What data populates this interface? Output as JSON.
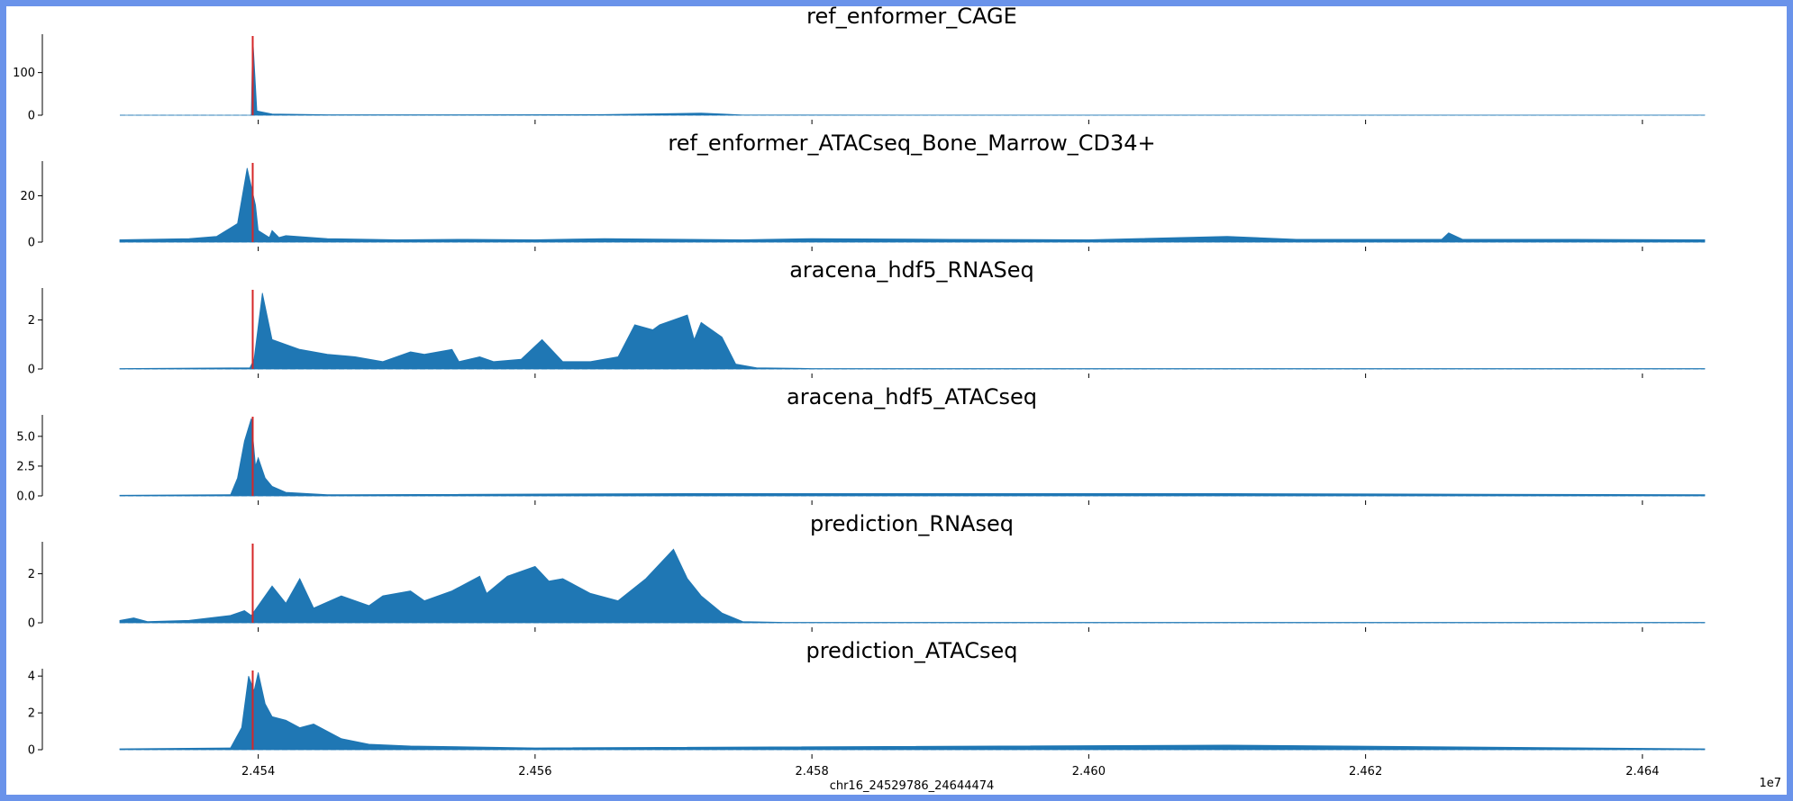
{
  "chart_data": {
    "type": "area",
    "xlabel": "chr16_24529786_24644474",
    "x_offset_label": "1e7",
    "xlim": [
      2.453,
      2.46445
    ],
    "x_ticks": [
      2.454,
      2.456,
      2.458,
      2.46,
      2.462,
      2.464
    ],
    "x_tick_labels": [
      "2.454",
      "2.456",
      "2.458",
      "2.460",
      "2.462",
      "2.464"
    ],
    "marker_x": 2.45396,
    "colors": {
      "fill": "#1f77b4",
      "marker": "#d62728",
      "frame": "#6a93ea"
    },
    "tracks": [
      {
        "title": "ref_enformer_CAGE",
        "ylim": [
          0,
          190
        ],
        "yticks": [
          0,
          100
        ],
        "ytick_labels": [
          "0",
          "100"
        ],
        "profile": [
          [
            2.453,
            0
          ],
          [
            2.45395,
            0
          ],
          [
            2.45396,
            185
          ],
          [
            2.45399,
            10
          ],
          [
            2.4541,
            3
          ],
          [
            2.4545,
            1
          ],
          [
            2.4555,
            1
          ],
          [
            2.4565,
            1.5
          ],
          [
            2.457,
            4
          ],
          [
            2.4572,
            5
          ],
          [
            2.45735,
            3
          ],
          [
            2.4575,
            0.5
          ],
          [
            2.46,
            0.3
          ],
          [
            2.46445,
            0.3
          ]
        ]
      },
      {
        "title": "ref_enformer_ATACseq_Bone_Marrow_CD34+",
        "ylim": [
          0,
          35
        ],
        "yticks": [
          0,
          20
        ],
        "ytick_labels": [
          "0",
          "20"
        ],
        "profile": [
          [
            2.453,
            1
          ],
          [
            2.4535,
            1.5
          ],
          [
            2.4537,
            2.5
          ],
          [
            2.45385,
            8
          ],
          [
            2.45392,
            32
          ],
          [
            2.45398,
            16
          ],
          [
            2.454,
            5
          ],
          [
            2.45408,
            2
          ],
          [
            2.4541,
            5
          ],
          [
            2.45415,
            2
          ],
          [
            2.4542,
            2.8
          ],
          [
            2.4545,
            1.5
          ],
          [
            2.455,
            1
          ],
          [
            2.4555,
            1.2
          ],
          [
            2.456,
            1
          ],
          [
            2.4565,
            1.5
          ],
          [
            2.4575,
            1
          ],
          [
            2.458,
            1.5
          ],
          [
            2.459,
            1.2
          ],
          [
            2.46,
            1
          ],
          [
            2.461,
            2.5
          ],
          [
            2.4615,
            1.2
          ],
          [
            2.46255,
            1.2
          ],
          [
            2.4626,
            4
          ],
          [
            2.4627,
            1.2
          ],
          [
            2.4635,
            1.2
          ],
          [
            2.46445,
            1
          ]
        ]
      },
      {
        "title": "aracena_hdf5_RNASeq",
        "ylim": [
          0,
          3.3
        ],
        "yticks": [
          0,
          2
        ],
        "ytick_labels": [
          "0",
          "2"
        ],
        "profile": [
          [
            2.453,
            0.02
          ],
          [
            2.45394,
            0.05
          ],
          [
            2.45397,
            0.4
          ],
          [
            2.45403,
            3.1
          ],
          [
            2.4541,
            1.2
          ],
          [
            2.4543,
            0.8
          ],
          [
            2.4545,
            0.6
          ],
          [
            2.4547,
            0.5
          ],
          [
            2.4549,
            0.3
          ],
          [
            2.4551,
            0.7
          ],
          [
            2.4552,
            0.6
          ],
          [
            2.4554,
            0.8
          ],
          [
            2.45545,
            0.3
          ],
          [
            2.4556,
            0.5
          ],
          [
            2.4557,
            0.3
          ],
          [
            2.4559,
            0.4
          ],
          [
            2.45605,
            1.2
          ],
          [
            2.4562,
            0.3
          ],
          [
            2.4564,
            0.3
          ],
          [
            2.4566,
            0.5
          ],
          [
            2.45672,
            1.8
          ],
          [
            2.45685,
            1.6
          ],
          [
            2.4569,
            1.8
          ],
          [
            2.4571,
            2.2
          ],
          [
            2.45715,
            1.2
          ],
          [
            2.4572,
            1.9
          ],
          [
            2.45735,
            1.3
          ],
          [
            2.45745,
            0.2
          ],
          [
            2.4576,
            0.05
          ],
          [
            2.458,
            0.02
          ],
          [
            2.46445,
            0.02
          ]
        ]
      },
      {
        "title": "aracena_hdf5_ATACseq",
        "ylim": [
          0,
          6.8
        ],
        "yticks": [
          0,
          2.5,
          5
        ],
        "ytick_labels": [
          "0.0",
          "2.5",
          "5.0"
        ],
        "profile": [
          [
            2.453,
            0.05
          ],
          [
            2.4538,
            0.1
          ],
          [
            2.45385,
            1.5
          ],
          [
            2.4539,
            4.6
          ],
          [
            2.45395,
            6.5
          ],
          [
            2.45398,
            2.5
          ],
          [
            2.454,
            3.2
          ],
          [
            2.45405,
            1.5
          ],
          [
            2.4541,
            0.8
          ],
          [
            2.4542,
            0.3
          ],
          [
            2.4545,
            0.1
          ],
          [
            2.4571,
            0.2
          ],
          [
            2.461,
            0.2
          ],
          [
            2.46445,
            0.1
          ]
        ]
      },
      {
        "title": "prediction_RNAseq",
        "ylim": [
          0,
          3.3
        ],
        "yticks": [
          0,
          2
        ],
        "ytick_labels": [
          "0",
          "2"
        ],
        "profile": [
          [
            2.453,
            0.1
          ],
          [
            2.4531,
            0.2
          ],
          [
            2.4532,
            0.05
          ],
          [
            2.4535,
            0.1
          ],
          [
            2.4538,
            0.3
          ],
          [
            2.4539,
            0.5
          ],
          [
            2.45395,
            0.3
          ],
          [
            2.4541,
            1.5
          ],
          [
            2.4542,
            0.8
          ],
          [
            2.4543,
            1.8
          ],
          [
            2.4544,
            0.6
          ],
          [
            2.4546,
            1.1
          ],
          [
            2.4548,
            0.7
          ],
          [
            2.4549,
            1.1
          ],
          [
            2.4551,
            1.3
          ],
          [
            2.4552,
            0.9
          ],
          [
            2.4554,
            1.3
          ],
          [
            2.4556,
            1.9
          ],
          [
            2.45565,
            1.2
          ],
          [
            2.4558,
            1.9
          ],
          [
            2.456,
            2.3
          ],
          [
            2.4561,
            1.7
          ],
          [
            2.4562,
            1.8
          ],
          [
            2.4564,
            1.2
          ],
          [
            2.4566,
            0.9
          ],
          [
            2.4568,
            1.8
          ],
          [
            2.457,
            3.0
          ],
          [
            2.4571,
            1.8
          ],
          [
            2.4572,
            1.1
          ],
          [
            2.45735,
            0.4
          ],
          [
            2.4575,
            0.05
          ],
          [
            2.4578,
            0.02
          ],
          [
            2.46445,
            0.02
          ]
        ]
      },
      {
        "title": "prediction_ATACseq",
        "ylim": [
          0,
          4.4
        ],
        "yticks": [
          0,
          2,
          4
        ],
        "ytick_labels": [
          "0",
          "2",
          "4"
        ],
        "profile": [
          [
            2.453,
            0.05
          ],
          [
            2.4538,
            0.1
          ],
          [
            2.45388,
            1.2
          ],
          [
            2.45393,
            4.0
          ],
          [
            2.45397,
            3.2
          ],
          [
            2.454,
            4.2
          ],
          [
            2.45405,
            2.5
          ],
          [
            2.4541,
            1.8
          ],
          [
            2.4542,
            1.6
          ],
          [
            2.4543,
            1.2
          ],
          [
            2.4544,
            1.4
          ],
          [
            2.4546,
            0.6
          ],
          [
            2.4548,
            0.3
          ],
          [
            2.4551,
            0.2
          ],
          [
            2.456,
            0.1
          ],
          [
            2.461,
            0.25
          ],
          [
            2.46445,
            0.05
          ]
        ]
      }
    ]
  }
}
